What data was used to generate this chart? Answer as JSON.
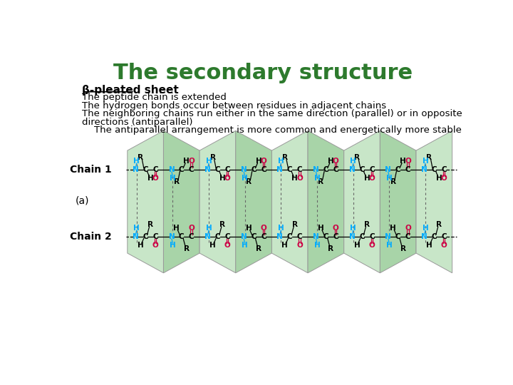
{
  "title": "The secondary structure",
  "title_color": "#2d7a2d",
  "title_fontsize": 22,
  "bg_color": "#ffffff",
  "subtitle_bold": "β-pleated sheet",
  "line1": "The peptide chain is extended",
  "line2": "The hydrogen bonds occur between residues in adjacent chains",
  "line3": "The neighboring chains run either in the same direction (parallel) or in opposite",
  "line4": "directions (antiparallel)",
  "line5": "    The antiparallel arrangement is more common and energetically more stable",
  "label_a": "(a)",
  "chain1_label": "Chain 1",
  "chain2_label": "Chain 2",
  "text_fontsize": 10,
  "label_fontsize": 11,
  "green_light": "#c8e6c8",
  "green_mid": "#a8d4a8",
  "atom_N_color": "#00aaff",
  "atom_O_color": "#cc0044",
  "atom_C_color": "#000000"
}
